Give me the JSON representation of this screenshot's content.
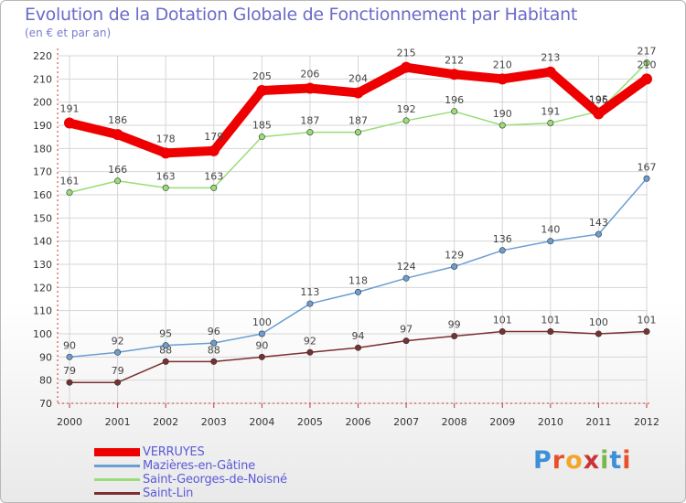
{
  "title": "Evolution de la Dotation Globale de Fonctionnement par Habitant",
  "subtitle": "(en € et par an)",
  "logo": {
    "text": "Proxiti",
    "letter_colors": [
      "#3d8fd6",
      "#e8502a",
      "#f2a72b",
      "#cc3333",
      "#7ab648",
      "#3d8fd6",
      "#e8502a"
    ]
  },
  "colors": {
    "axis": "#cc3333",
    "grid": "#d6d6d6",
    "tick_text": "#333333",
    "data_label": "#444444"
  },
  "chart_data": {
    "type": "line",
    "title": "Evolution de la Dotation Globale de Fonctionnement par Habitant",
    "ylabel": "(en € et par an)",
    "xlabel": "",
    "x": [
      "2000",
      "2001",
      "2002",
      "2003",
      "2004",
      "2005",
      "2006",
      "2007",
      "2008",
      "2009",
      "2010",
      "2011",
      "2012"
    ],
    "ylim": [
      70,
      220
    ],
    "yticks": [
      70,
      80,
      90,
      100,
      110,
      120,
      130,
      140,
      150,
      160,
      170,
      180,
      190,
      200,
      210,
      220
    ],
    "grid": true,
    "legend_position": "bottom-left",
    "series": [
      {
        "name": "VERRUYES",
        "color": "#ee0000",
        "values": [
          191,
          186,
          178,
          179,
          205,
          206,
          204,
          215,
          212,
          210,
          213,
          195,
          210
        ]
      },
      {
        "name": "Mazières-en-Gâtine",
        "color": "#6b9ed1",
        "values": [
          90,
          92,
          95,
          96,
          100,
          113,
          118,
          124,
          129,
          136,
          140,
          143,
          167
        ]
      },
      {
        "name": "Saint-Georges-de-Noisné",
        "color": "#99dd77",
        "values": [
          161,
          166,
          163,
          163,
          185,
          187,
          187,
          192,
          196,
          190,
          191,
          196,
          217
        ]
      },
      {
        "name": "Saint-Lin",
        "color": "#7a3030",
        "values": [
          79,
          79,
          88,
          88,
          90,
          92,
          94,
          97,
          99,
          101,
          101,
          100,
          101
        ]
      }
    ]
  }
}
